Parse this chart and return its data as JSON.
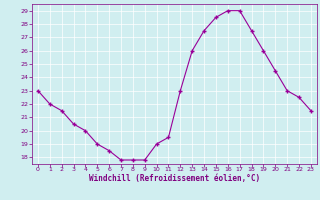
{
  "x": [
    0,
    1,
    2,
    3,
    4,
    5,
    6,
    7,
    8,
    9,
    10,
    11,
    12,
    13,
    14,
    15,
    16,
    17,
    18,
    19,
    20,
    21,
    22,
    23
  ],
  "y": [
    23,
    22,
    21.5,
    20.5,
    20,
    19,
    18.5,
    17.8,
    17.8,
    17.8,
    19,
    19.5,
    23,
    26,
    27.5,
    28.5,
    29,
    29,
    27.5,
    26,
    24.5,
    23,
    22.5,
    21.5
  ],
  "line_color": "#990099",
  "marker_color": "#990099",
  "bg_color": "#d0eef0",
  "grid_color": "#ffffff",
  "xlabel": "Windchill (Refroidissement éolien,°C)",
  "xlabel_color": "#800080",
  "tick_color": "#800080",
  "ylim": [
    17.5,
    29.5
  ],
  "xlim": [
    -0.5,
    23.5
  ],
  "yticks": [
    18,
    19,
    20,
    21,
    22,
    23,
    24,
    25,
    26,
    27,
    28,
    29
  ],
  "xticks": [
    0,
    1,
    2,
    3,
    4,
    5,
    6,
    7,
    8,
    9,
    10,
    11,
    12,
    13,
    14,
    15,
    16,
    17,
    18,
    19,
    20,
    21,
    22,
    23
  ],
  "figwidth": 3.2,
  "figheight": 2.0,
  "dpi": 100
}
